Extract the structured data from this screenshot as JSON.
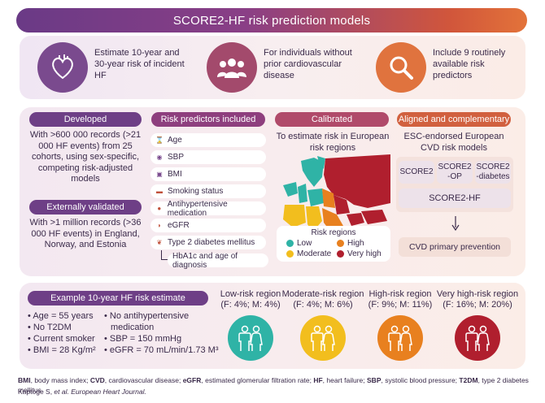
{
  "title": "SCORE2-HF risk prediction models",
  "top": {
    "items": [
      {
        "text": "Estimate 10-year and 30-year risk of incident HF",
        "icon": "heart-icon"
      },
      {
        "text": "For individuals without prior cardiovascular disease",
        "icon": "people-icon"
      },
      {
        "text": "Include 9 routinely available risk predictors",
        "icon": "magnifier-icon"
      }
    ]
  },
  "developed": {
    "label": "Developed",
    "text": "With >600 000 records (>21 000 HF events) from 25 cohorts, using sex-specific, competing risk-adjusted models"
  },
  "validated": {
    "label": "Externally validated",
    "text": "With >1 million records (>36 000 HF events) in England, Norway, and Estonia"
  },
  "predictors": {
    "label": "Risk predictors included",
    "items": [
      "Age",
      "SBP",
      "BMI",
      "Smoking status",
      "Antihypertensive medication",
      "eGFR",
      "Type 2 diabetes mellitus"
    ],
    "sub": "HbA1c and age of diagnosis"
  },
  "calibrated": {
    "label": "Calibrated",
    "text": "To estimate risk in European risk regions",
    "legend_title": "Risk regions",
    "legend": [
      {
        "label": "Low",
        "color": "#2fb3a6"
      },
      {
        "label": "High",
        "color": "#e8801f"
      },
      {
        "label": "Moderate",
        "color": "#f2be1e"
      },
      {
        "label": "Very high",
        "color": "#b01f2e"
      }
    ]
  },
  "aligned": {
    "label": "Aligned and complementary",
    "text": "ESC-endorsed European CVD risk models",
    "models": [
      "SCORE2",
      "SCORE2 -OP",
      "SCORE2 -diabetes"
    ],
    "hf": "SCORE2-HF",
    "prevention": "CVD primary prevention"
  },
  "example": {
    "label": "Example 10-year HF risk estimate",
    "left": [
      "Age = 55 years",
      "No T2DM",
      "Current smoker",
      "BMI = 28 Kg/m²"
    ],
    "right": [
      "No antihypertensive medication",
      "SBP = 150 mmHg",
      "eGFR = 70 mL/min/1.73 M³"
    ]
  },
  "regions": [
    {
      "name": "Low-risk region",
      "values": "(F: 4%; M: 4%)",
      "color": "#2fb3a6"
    },
    {
      "name": "Moderate-risk region",
      "values": "(F: 4%; M: 6%)",
      "color": "#f2be1e"
    },
    {
      "name": "High-risk region",
      "values": "(F: 9%; M: 11%)",
      "color": "#e8801f"
    },
    {
      "name": "Very high-risk region",
      "values": "(F: 16%; M: 20%)",
      "color": "#b01f2e"
    }
  ],
  "footnote": {
    "defs": [
      {
        "abbr": "BMI",
        "def": ", body mass index; "
      },
      {
        "abbr": "CVD",
        "def": ", cardiovascular disease; "
      },
      {
        "abbr": "eGFR",
        "def": ", estimated glomerular filtration rate; "
      },
      {
        "abbr": "HF",
        "def": ", heart failure; "
      },
      {
        "abbr": "SBP",
        "def": ", systolic blood pressure; "
      },
      {
        "abbr": "T2DM",
        "def": ", type 2 diabetes mellitus"
      }
    ],
    "citation_authors": "Kaptoge S, ",
    "citation_etal": "et al.",
    "citation_journal": " European Heart Journal."
  }
}
